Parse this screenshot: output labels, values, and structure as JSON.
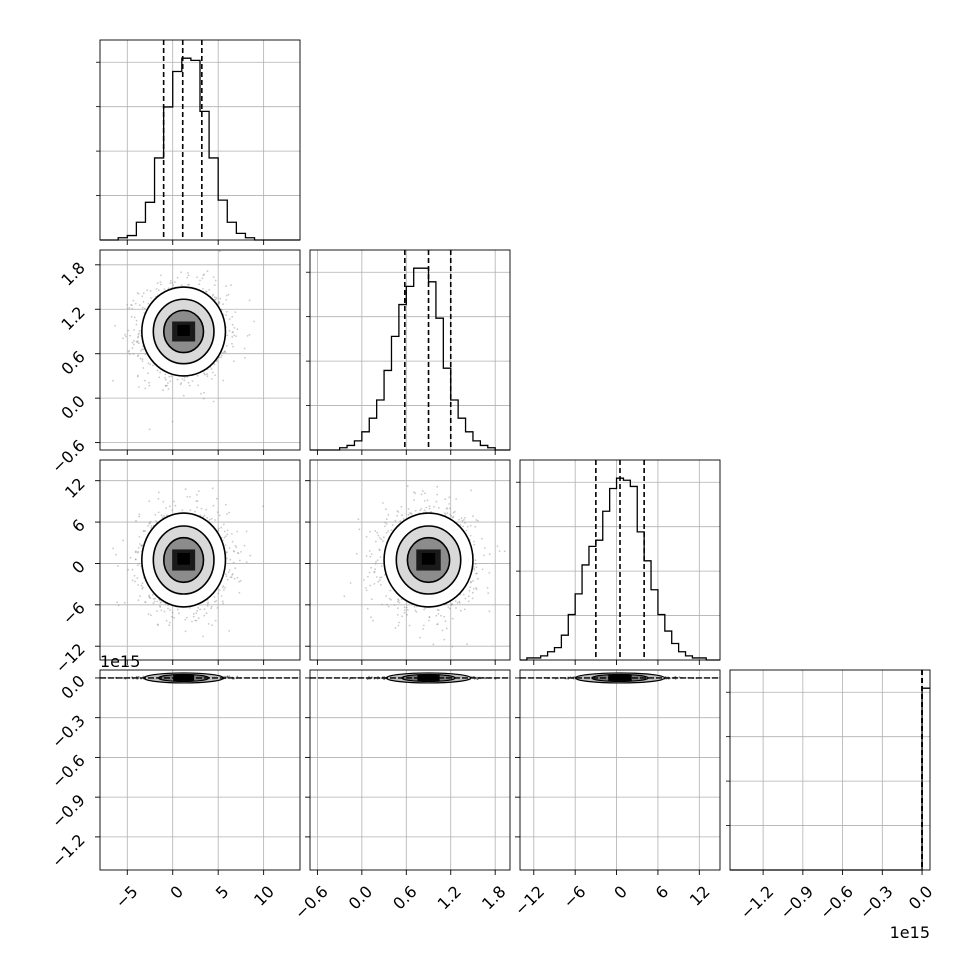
{
  "chart_data": {
    "type": "corner",
    "n_params": 4,
    "offset_label": "1e15",
    "grid": true,
    "quantile_lines": "dashed",
    "contour_levels": 3,
    "params": [
      {
        "range": [
          -8,
          14
        ],
        "ticks": [
          -5,
          0,
          5,
          10
        ],
        "tick_labels": [
          "−5",
          "0",
          "5",
          "10"
        ],
        "quantiles": [
          -1.0,
          1.1,
          3.2
        ],
        "hist_edges": [
          -8,
          -7,
          -6,
          -5,
          -4,
          -3,
          -2,
          -1,
          0,
          1,
          2,
          3,
          4,
          5,
          6,
          7,
          8,
          9,
          10,
          11,
          12,
          13,
          14
        ],
        "hist_counts": [
          0,
          0,
          1,
          2,
          8,
          17,
          37,
          60,
          76,
          82,
          81,
          58,
          37,
          18,
          8,
          3,
          1,
          0,
          0,
          0,
          0,
          0
        ],
        "center": [
          1.2,
          0.9
        ],
        "sigma": [
          2.3,
          0.3
        ]
      },
      {
        "range": [
          -0.7,
          2.0
        ],
        "ticks": [
          -0.6,
          0.0,
          0.6,
          1.2,
          1.8
        ],
        "tick_labels": [
          "−0.6",
          "0.0",
          "0.6",
          "1.2",
          "1.8"
        ],
        "quantiles": [
          0.58,
          0.9,
          1.2
        ],
        "hist_edges": [
          -0.7,
          -0.6,
          -0.5,
          -0.4,
          -0.3,
          -0.2,
          -0.1,
          0.0,
          0.1,
          0.2,
          0.3,
          0.4,
          0.5,
          0.6,
          0.7,
          0.8,
          0.9,
          1.0,
          1.1,
          1.2,
          1.3,
          1.4,
          1.5,
          1.6,
          1.7,
          1.8,
          1.9,
          2.0
        ],
        "hist_counts": [
          0,
          0,
          0,
          0,
          1,
          2,
          4,
          8,
          14,
          22,
          35,
          50,
          64,
          72,
          80,
          80,
          74,
          58,
          36,
          22,
          14,
          8,
          4,
          2,
          1,
          0,
          0
        ],
        "center": [
          0.9,
          0.0
        ],
        "sigma": [
          0.3,
          3.0
        ]
      },
      {
        "range": [
          -14,
          15
        ],
        "ticks": [
          -12,
          -6,
          0,
          6,
          12
        ],
        "tick_labels": [
          "−12",
          "−6",
          "0",
          "6",
          "12"
        ],
        "quantiles": [
          -3.0,
          0.5,
          4.0
        ],
        "hist_edges": [
          -14,
          -13,
          -12,
          -11,
          -10,
          -9,
          -8,
          -7,
          -6,
          -5,
          -4,
          -3,
          -2,
          -1,
          0,
          1,
          2,
          3,
          4,
          5,
          6,
          7,
          8,
          9,
          10,
          11,
          12,
          13,
          14,
          15
        ],
        "hist_counts": [
          0,
          1,
          1,
          2,
          4,
          6,
          12,
          22,
          32,
          46,
          55,
          58,
          72,
          83,
          88,
          87,
          84,
          62,
          48,
          34,
          22,
          14,
          8,
          4,
          2,
          1,
          1,
          0,
          0
        ],
        "center": [
          0.5,
          0.0
        ],
        "sigma": [
          3.4,
          0.0
        ]
      },
      {
        "range": [
          -1.45,
          0.06
        ],
        "ticks": [
          -1.2,
          -0.9,
          -0.6,
          -0.3,
          0.0
        ],
        "tick_labels": [
          "−1.2",
          "−0.9",
          "−0.6",
          "−0.3",
          "0.0"
        ],
        "quantiles": [
          0.0,
          0.0,
          0.0
        ],
        "hist_edges": [
          -1.45,
          0.0,
          0.06
        ],
        "hist_counts": [
          0,
          100
        ],
        "center": [
          0.0,
          0.0
        ],
        "sigma": [
          0.0,
          0.0
        ]
      }
    ]
  }
}
